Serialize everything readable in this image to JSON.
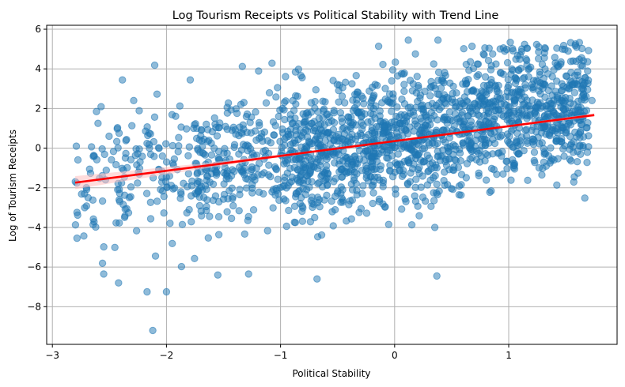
{
  "chart_data": {
    "type": "scatter",
    "title": "Log Tourism Receipts vs Political Stability with Trend Line",
    "xlabel": "Political Stability",
    "ylabel": "Log of Tourism Receipts",
    "xlim": [
      -3.05,
      1.95
    ],
    "ylim": [
      -9.9,
      6.2
    ],
    "xticks": [
      -3,
      -2,
      -1,
      0,
      1
    ],
    "xtick_labels": [
      "−3",
      "−2",
      "−1",
      "0",
      "1"
    ],
    "yticks": [
      -8,
      -6,
      -4,
      -2,
      0,
      2,
      4,
      6
    ],
    "ytick_labels": [
      "−8",
      "−6",
      "−4",
      "−2",
      "0",
      "2",
      "4",
      "6"
    ],
    "grid": true,
    "colors": {
      "points": "#1f77b4",
      "trend": "#ff0000",
      "band": "#ffc0c0"
    },
    "trend_line": {
      "x": [
        -2.8,
        1.75
      ],
      "y": [
        -1.74,
        1.67
      ]
    },
    "points_summary": {
      "count_estimate": 2000,
      "x_range": [
        -2.8,
        1.73
      ],
      "y_range": [
        -9.2,
        5.45
      ],
      "note_of_density": "cloud centered around x≈0..1, y≈0..2"
    },
    "outliers": [
      {
        "x": -2.12,
        "y": -9.2
      },
      {
        "x": -2.0,
        "y": -7.25
      },
      {
        "x": -2.17,
        "y": -7.25
      },
      {
        "x": -2.55,
        "y": -6.35
      },
      {
        "x": -2.42,
        "y": -6.8
      },
      {
        "x": -1.55,
        "y": -6.4
      },
      {
        "x": -1.28,
        "y": -6.35
      },
      {
        "x": -0.68,
        "y": -6.6
      },
      {
        "x": 0.37,
        "y": -6.45
      },
      {
        "x": -2.79,
        "y": 0.1
      },
      {
        "x": -2.6,
        "y": 1.25
      },
      {
        "x": 0.12,
        "y": 5.45
      },
      {
        "x": 0.38,
        "y": 5.45
      },
      {
        "x": 1.1,
        "y": 4.7
      },
      {
        "x": 1.73,
        "y": 2.4
      }
    ]
  }
}
